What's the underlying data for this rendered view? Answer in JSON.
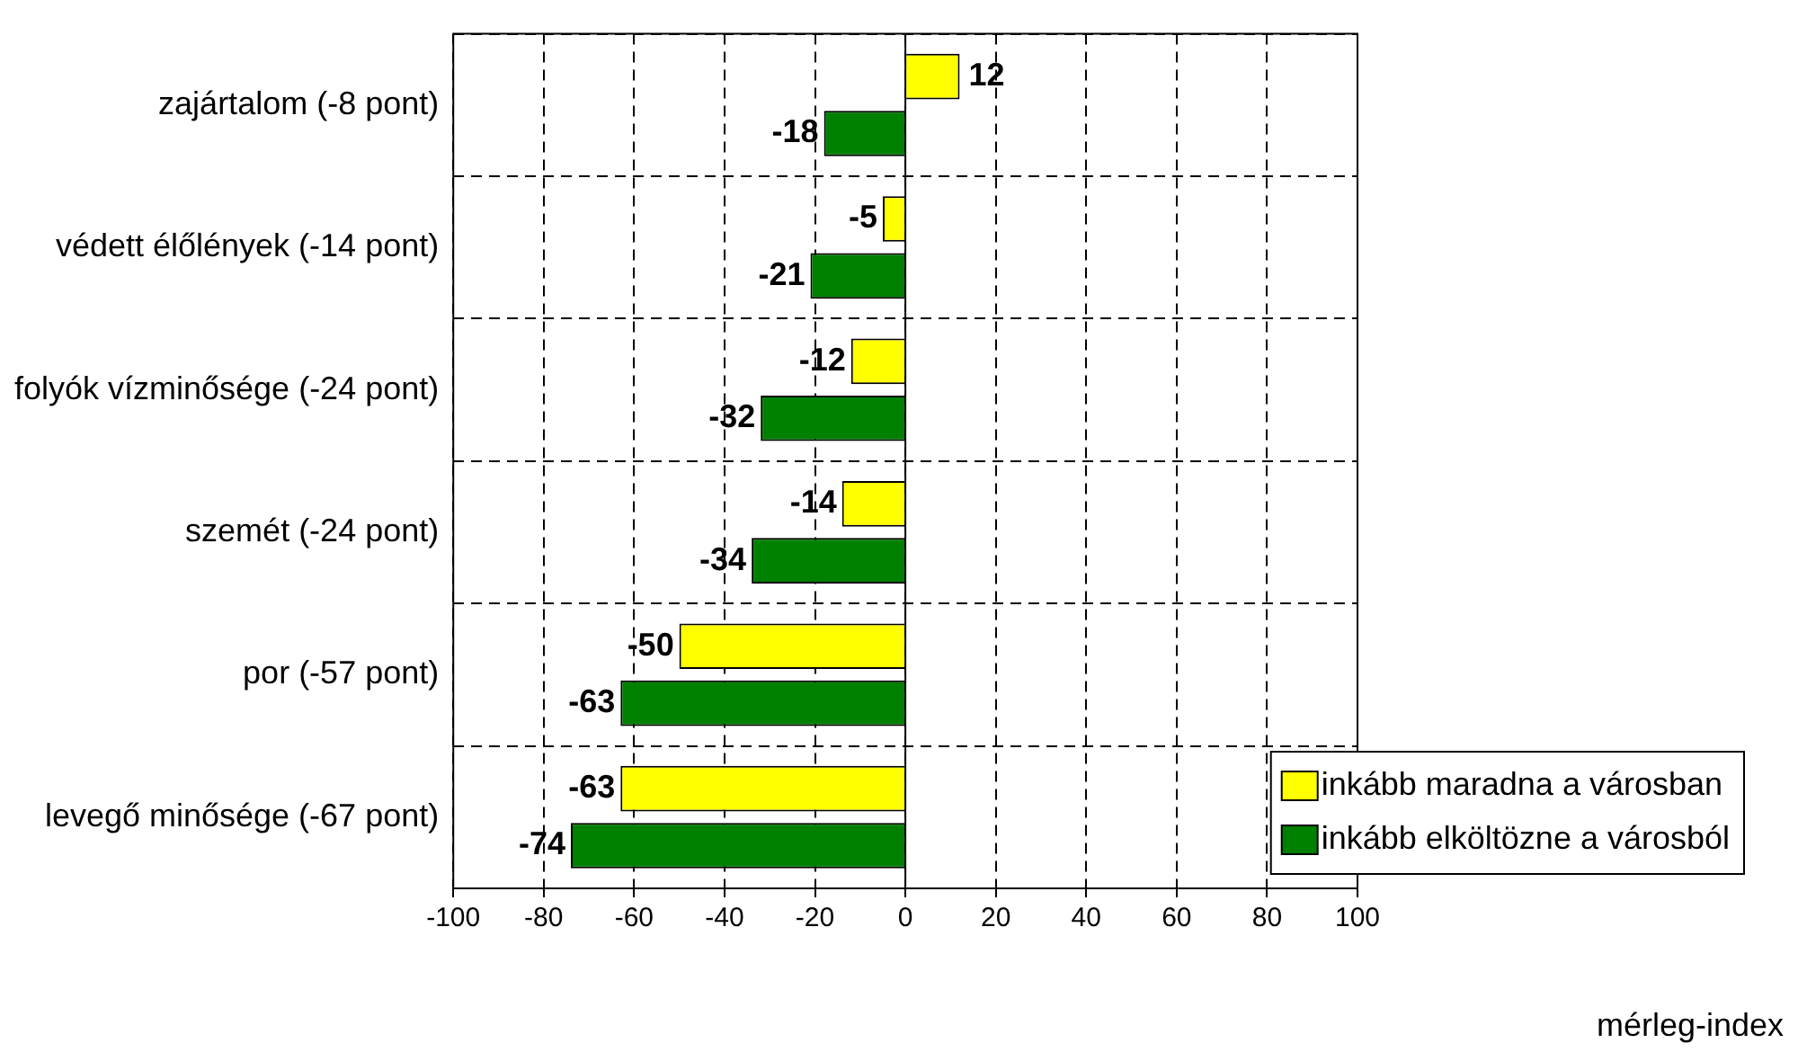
{
  "chart_data": {
    "type": "bar",
    "orientation": "horizontal",
    "categories": [
      "zajártalom (-8 pont)",
      "védett élőlények (-14 pont)",
      "folyók vízminősége (-24 pont)",
      "szemét (-24 pont)",
      "por (-57 pont)",
      "levegő minősége (-67 pont)"
    ],
    "series": [
      {
        "name": "inkább maradna a városban",
        "color": "#ffff00",
        "values": [
          12,
          -5,
          -12,
          -14,
          -50,
          -63
        ]
      },
      {
        "name": "inkább elköltözne a városból",
        "color": "#008000",
        "values": [
          -18,
          -21,
          -32,
          -34,
          -63,
          -74
        ]
      }
    ],
    "xlim": [
      -100,
      100
    ],
    "xticks": [
      -100,
      -80,
      -60,
      -40,
      -20,
      0,
      20,
      40,
      60,
      80,
      100
    ],
    "annotations": [
      "mérleg-index"
    ],
    "grid": true,
    "legend": "bottom right",
    "data_labels": true
  }
}
